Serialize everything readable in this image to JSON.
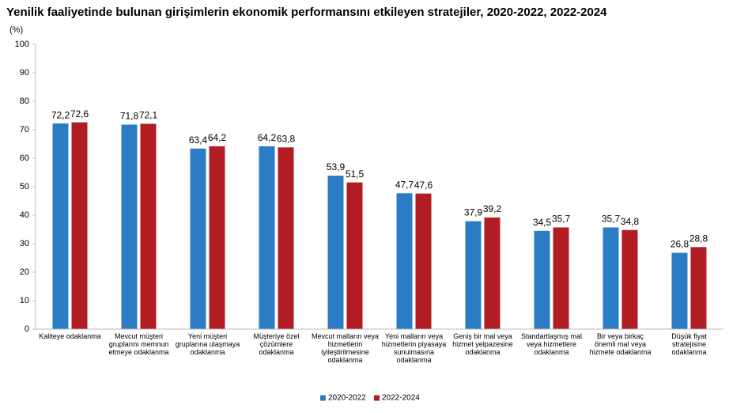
{
  "chart_data": {
    "type": "bar",
    "title": "Yenilik faaliyetinde bulunan girişimlerin ekonomik performansını etkileyen stratejiler, 2020-2022, 2022-2024",
    "y_label": "(%)",
    "categories": [
      [
        "Kaliteye odaklanma"
      ],
      [
        "Mevcut müşteri",
        "gruplarını memnun",
        "etmeye odaklanma"
      ],
      [
        "Yeni müşteri",
        "gruplarına ulaşmaya",
        "odaklanma"
      ],
      [
        "Müşteriye özel",
        "çözümlere",
        "odaklanma"
      ],
      [
        "Mevcut malların veya",
        "hizmetlerin",
        "iyileştirilmesine",
        "odaklanma"
      ],
      [
        "Yeni malların veya",
        "hizmetlerin piyasaya",
        "sunulmasına",
        "odaklanma"
      ],
      [
        "Geniş bir mal veya",
        "hizmet yelpazesine",
        "odaklanma"
      ],
      [
        "Standartlaşmış mal",
        "veya  hizmetlere",
        "odaklanma"
      ],
      [
        "Bir veya birkaç",
        "önemli mal veya",
        "hizmete odaklanma"
      ],
      [
        "Düşük fiyat",
        "stratejisine",
        "odaklanma"
      ]
    ],
    "series": [
      {
        "name": "2020-2022",
        "color": "#2b7cc4",
        "values": [
          72.2,
          71.8,
          63.4,
          64.2,
          53.9,
          47.7,
          37.9,
          34.5,
          35.7,
          26.8
        ],
        "value_labels": [
          "72,2",
          "71,8",
          "63,4",
          "64,2",
          "53,9",
          "47,7",
          "37,9",
          "34,5",
          "35,7",
          "26,8"
        ]
      },
      {
        "name": "2022-2024",
        "color": "#b11d22",
        "values": [
          72.6,
          72.1,
          64.2,
          63.8,
          51.5,
          47.6,
          39.2,
          35.7,
          34.8,
          28.8
        ],
        "value_labels": [
          "72,6",
          "72,1",
          "64,2",
          "63,8",
          "51,5",
          "47,6",
          "39,2",
          "35,7",
          "34,8",
          "28,8"
        ]
      }
    ],
    "ylim": [
      0,
      100
    ],
    "yticks": [
      0,
      10,
      20,
      30,
      40,
      50,
      60,
      70,
      80,
      90,
      100
    ],
    "grid": false,
    "legend": "bottom"
  }
}
